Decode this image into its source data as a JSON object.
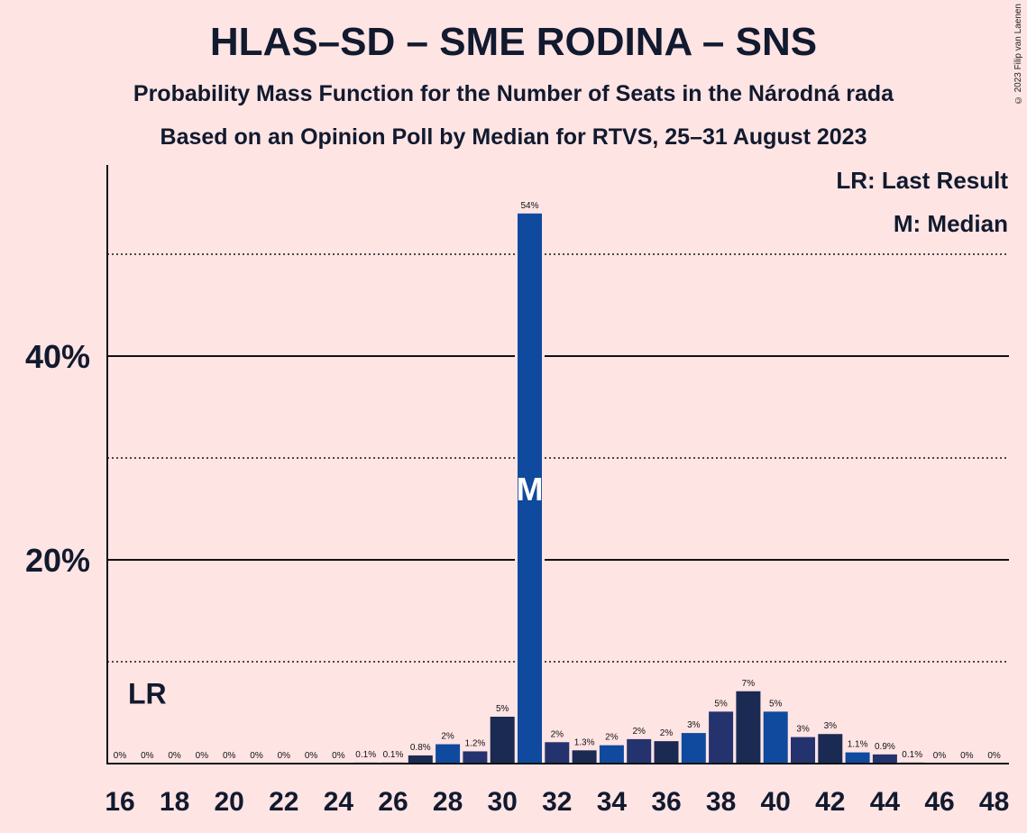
{
  "title": "HLAS–SD – SME RODINA – SNS",
  "subtitle": "Probability Mass Function for the Number of Seats in the Národná rada",
  "subtitle2": "Based on an Opinion Poll by Median for RTVS, 25–31 August 2023",
  "copyright": "© 2023 Filip van Laenen",
  "legend": {
    "lr": "LR: Last Result",
    "m": "M: Median"
  },
  "colors": {
    "background": "#ffe4e4",
    "dark_navy": "#1a2a52",
    "royal_blue": "#0f4a9e",
    "mid_navy": "#24336e"
  },
  "chart_data": {
    "type": "bar",
    "x": [
      16,
      17,
      18,
      19,
      20,
      21,
      22,
      23,
      24,
      25,
      26,
      27,
      28,
      29,
      30,
      31,
      32,
      33,
      34,
      35,
      36,
      37,
      38,
      39,
      40,
      41,
      42,
      43,
      44,
      45,
      46,
      47,
      48
    ],
    "values": [
      0,
      0,
      0,
      0,
      0,
      0,
      0,
      0,
      0,
      0.1,
      0.1,
      0.8,
      1.9,
      1.2,
      4.6,
      54,
      2.1,
      1.3,
      1.8,
      2.4,
      2.2,
      3.0,
      5.1,
      7.1,
      5.1,
      2.6,
      2.9,
      1.1,
      0.9,
      0.1,
      0,
      0,
      0
    ],
    "labels": [
      "0%",
      "0%",
      "0%",
      "0%",
      "0%",
      "0%",
      "0%",
      "0%",
      "0%",
      "0.1%",
      "0.1%",
      "0.8%",
      "2%",
      "1.2%",
      "5%",
      "54%",
      "2%",
      "1.3%",
      "2%",
      "2%",
      "2%",
      "3%",
      "5%",
      "7%",
      "5%",
      "3%",
      "3%",
      "1.1%",
      "0.9%",
      "0.1%",
      "0%",
      "0%",
      "0%"
    ],
    "x_tick_labels": [
      "16",
      "18",
      "20",
      "22",
      "24",
      "26",
      "28",
      "30",
      "32",
      "34",
      "36",
      "38",
      "40",
      "42",
      "44",
      "46",
      "48"
    ],
    "y_tick_labels": [
      "20%",
      "40%"
    ],
    "ylim": [
      0,
      58
    ],
    "gridlines_solid": [
      20,
      40
    ],
    "gridlines_dotted": [
      10,
      30,
      50
    ],
    "last_result": 17,
    "last_result_label": "LR",
    "median": 31,
    "median_label": "M"
  }
}
